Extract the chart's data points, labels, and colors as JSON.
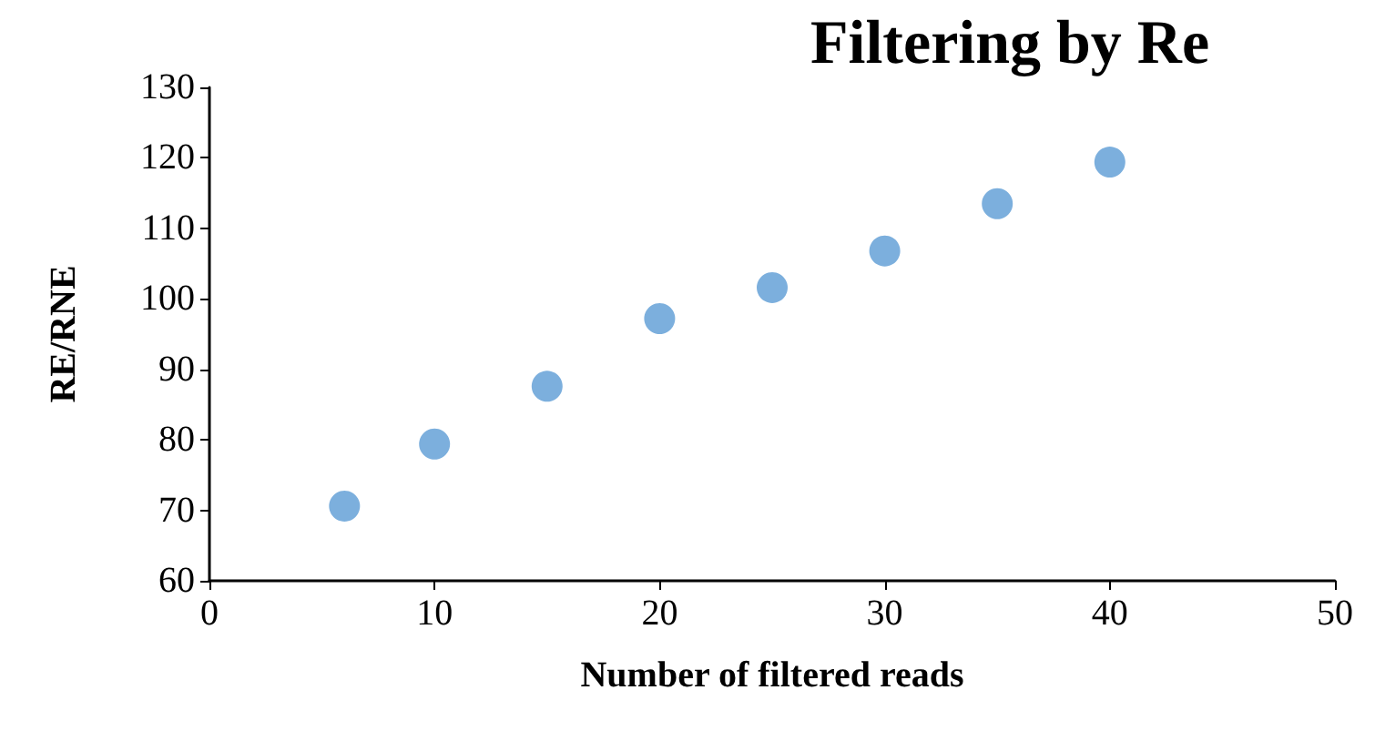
{
  "chart_data": {
    "type": "scatter",
    "title": "Filtering by Re",
    "xlabel": "Number of filtered reads",
    "ylabel": "RE/RNE",
    "x": [
      6,
      10,
      15,
      20,
      25,
      30,
      35,
      40
    ],
    "series": [
      {
        "color": "#5b9bd5",
        "values": [
          70.6,
          79.4,
          87.6,
          97.2,
          101.6,
          106.8,
          113.5,
          119.4
        ]
      }
    ],
    "xlim": [
      0,
      50
    ],
    "xticks": [
      0,
      10,
      20,
      30,
      40,
      50
    ],
    "ylim": [
      60,
      130
    ],
    "yticks": [
      60,
      70,
      80,
      90,
      100,
      110,
      120,
      130
    ],
    "grid": false,
    "marker": "circle"
  }
}
